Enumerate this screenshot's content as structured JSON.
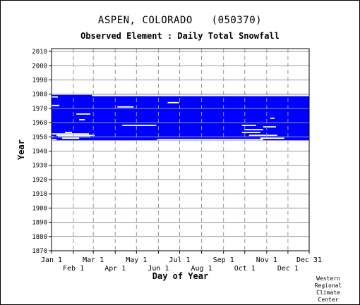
{
  "header": {
    "station": "ASPEN, COLORADO",
    "station_id": "(050370)",
    "element": "Observed Element : Daily Total Snowfall"
  },
  "credit": [
    "Western",
    "Regional",
    "Climate",
    "Center"
  ],
  "colors": {
    "data": "#0000ff",
    "grid": "#999999",
    "axis": "#000000"
  },
  "chart_data": {
    "type": "heatmap",
    "title": "ASPEN, COLORADO   (050370)",
    "subtitle": "Observed Element : Daily Total Snowfall",
    "xlabel": "Day of Year",
    "ylabel": "Year",
    "xlim": [
      1,
      365
    ],
    "ylim": [
      1870,
      2012
    ],
    "grid": true,
    "y_ticks": [
      1870,
      1880,
      1890,
      1900,
      1910,
      1920,
      1930,
      1940,
      1950,
      1960,
      1970,
      1980,
      1990,
      2000,
      2010
    ],
    "x_ticks_top_row": [
      {
        "label": "Jan 1",
        "day": 1
      },
      {
        "label": "Mar 1",
        "day": 60
      },
      {
        "label": "May 1",
        "day": 121
      },
      {
        "label": "Jul 1",
        "day": 182
      },
      {
        "label": "Sep 1",
        "day": 244
      },
      {
        "label": "Nov 1",
        "day": 305
      },
      {
        "label": "Dec 31",
        "day": 365
      }
    ],
    "x_ticks_bottom_row": [
      {
        "label": "Feb 1",
        "day": 32
      },
      {
        "label": "Apr 1",
        "day": 91
      },
      {
        "label": "Jun 1",
        "day": 152
      },
      {
        "label": "Aug 1",
        "day": 213
      },
      {
        "label": "Oct 1",
        "day": 274
      },
      {
        "label": "Dec 1",
        "day": 335
      }
    ],
    "data_coverage": {
      "year_start": 1948,
      "year_end": 1979,
      "day_start": 1,
      "day_end": 365
    },
    "missing_segments": [
      {
        "year": 1979,
        "day_start": 58,
        "day_end": 365
      },
      {
        "year": 1978,
        "day_start": 1,
        "day_end": 10
      },
      {
        "year": 1972,
        "day_start": 1,
        "day_end": 12
      },
      {
        "year": 1971,
        "day_start": 94,
        "day_end": 117
      },
      {
        "year": 1974,
        "day_start": 165,
        "day_end": 181
      },
      {
        "year": 1966,
        "day_start": 36,
        "day_end": 56
      },
      {
        "year": 1963,
        "day_start": 310,
        "day_end": 316
      },
      {
        "year": 1962,
        "day_start": 40,
        "day_end": 48
      },
      {
        "year": 1958,
        "day_start": 101,
        "day_end": 149
      },
      {
        "year": 1958,
        "day_start": 270,
        "day_end": 290
      },
      {
        "year": 1957,
        "day_start": 300,
        "day_end": 318
      },
      {
        "year": 1955,
        "day_start": 273,
        "day_end": 300
      },
      {
        "year": 1953,
        "day_start": 20,
        "day_end": 30
      },
      {
        "year": 1953,
        "day_start": 270,
        "day_end": 296
      },
      {
        "year": 1952,
        "day_start": 1,
        "day_end": 54
      },
      {
        "year": 1951,
        "day_start": 8,
        "day_end": 62
      },
      {
        "year": 1951,
        "day_start": 280,
        "day_end": 320
      },
      {
        "year": 1950,
        "day_start": 1,
        "day_end": 4
      },
      {
        "year": 1950,
        "day_start": 10,
        "day_end": 56
      },
      {
        "year": 1949,
        "day_start": 16,
        "day_end": 40
      },
      {
        "year": 1949,
        "day_start": 296,
        "day_end": 330
      },
      {
        "year": 1948,
        "day_start": 1,
        "day_end": 8
      },
      {
        "year": 1948,
        "day_start": 150,
        "day_end": 300
      }
    ]
  }
}
